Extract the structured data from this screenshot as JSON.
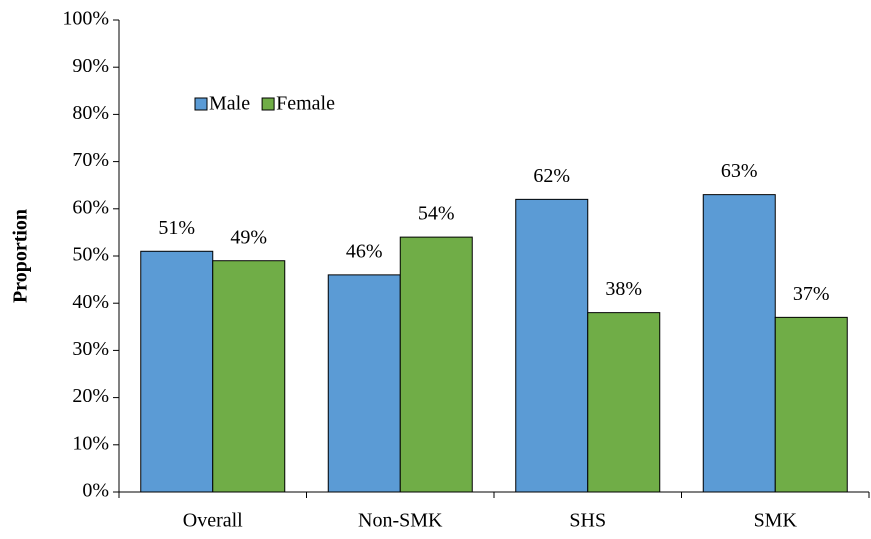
{
  "chart_data": {
    "type": "bar",
    "y_label": "Proportion",
    "categories": [
      "Overall",
      "Non-SMK",
      "SHS",
      "SMK"
    ],
    "series": [
      {
        "name": "Male",
        "color": "#5b9bd5",
        "values": [
          51,
          46,
          62,
          63
        ],
        "value_labels": [
          "51%",
          "46%",
          "62%",
          "63%"
        ]
      },
      {
        "name": "Female",
        "color": "#70ad47",
        "values": [
          49,
          54,
          38,
          37
        ],
        "value_labels": [
          "49%",
          "54%",
          "38%",
          "37%"
        ]
      }
    ],
    "ylim": [
      0,
      100
    ],
    "yticks": [
      {
        "value": 0,
        "label": "0%"
      },
      {
        "value": 10,
        "label": "10%"
      },
      {
        "value": 20,
        "label": "20%"
      },
      {
        "value": 30,
        "label": "30%"
      },
      {
        "value": 40,
        "label": "40%"
      },
      {
        "value": 50,
        "label": "50%"
      },
      {
        "value": 60,
        "label": "60%"
      },
      {
        "value": 70,
        "label": "70%"
      },
      {
        "value": 80,
        "label": "80%"
      },
      {
        "value": 90,
        "label": "90%"
      },
      {
        "value": 100,
        "label": "100%"
      }
    ],
    "grid": false,
    "legend": "top-left"
  }
}
